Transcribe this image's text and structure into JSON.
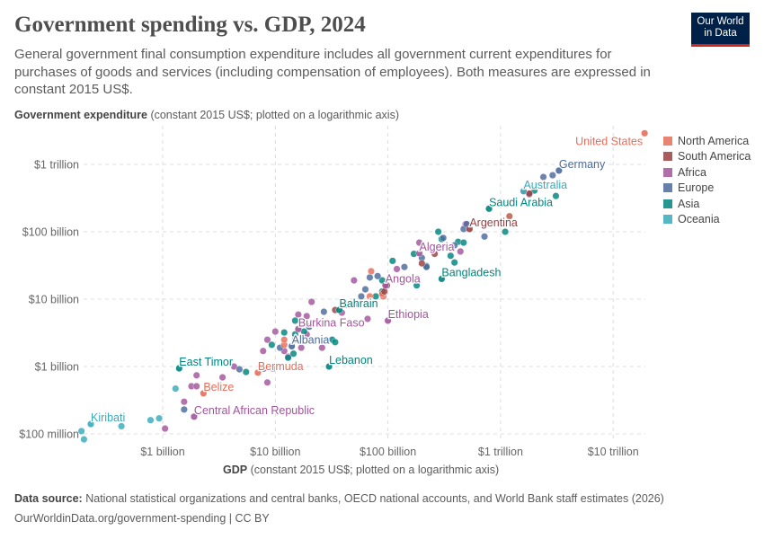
{
  "header": {
    "title": "Government spending vs. GDP, 2024",
    "subtitle": "General government final consumption expenditure includes all government current expenditures for purchases of goods and services (including compensation of employees). Both measures are expressed in constant 2015 US$.",
    "logo_line1": "Our World",
    "logo_line2": "in Data"
  },
  "footer": {
    "source_label": "Data source:",
    "source_text": "National statistical organizations and central banks, OECD national accounts, and World Bank staff estimates (2026)",
    "url_text": "OurWorldinData.org/government-spending | CC BY"
  },
  "chart_data": {
    "type": "scatter",
    "title": "Government spending vs. GDP, 2024",
    "xlabel_bold": "GDP",
    "xlabel_rest": "(constant 2015 US$; plotted on a logarithmic axis)",
    "ylabel_bold": "Government expenditure",
    "ylabel_rest": "(constant 2015 US$; plotted on a logarithmic axis)",
    "x_scale": "log",
    "y_scale": "log",
    "xlim": [
      200000000.0,
      20000000000000.0
    ],
    "ylim": [
      80000000.0,
      3200000000000.0
    ],
    "grid": true,
    "legend_position": "right",
    "x_ticks": [
      {
        "value": 1000000000.0,
        "label": "$1 billion"
      },
      {
        "value": 10000000000.0,
        "label": "$10 billion"
      },
      {
        "value": 100000000000.0,
        "label": "$100 billion"
      },
      {
        "value": 1000000000000.0,
        "label": "$1 trillion"
      },
      {
        "value": 10000000000000.0,
        "label": "$10 trillion"
      }
    ],
    "y_ticks": [
      {
        "value": 100000000.0,
        "label": "$100 million"
      },
      {
        "value": 1000000000.0,
        "label": "$1 billion"
      },
      {
        "value": 10000000000.0,
        "label": "$10 billion"
      },
      {
        "value": 100000000000.0,
        "label": "$100 billion"
      },
      {
        "value": 1000000000000.0,
        "label": "$1 trillion"
      }
    ],
    "regions": [
      {
        "name": "North America",
        "color": "#E56E5A"
      },
      {
        "name": "South America",
        "color": "#9A3F41"
      },
      {
        "name": "Africa",
        "color": "#A2559C"
      },
      {
        "name": "Europe",
        "color": "#4C6A9C"
      },
      {
        "name": "Asia",
        "color": "#00847E"
      },
      {
        "name": "Oceania",
        "color": "#38AABA"
      }
    ],
    "labeled_points": [
      {
        "label": "United States",
        "region": "North America",
        "x": 19000000000000.0,
        "y": 2900000000000.0
      },
      {
        "label": "Germany",
        "region": "Europe",
        "x": 3300000000000.0,
        "y": 810000000000.0
      },
      {
        "label": "Australia",
        "region": "Oceania",
        "x": 1600000000000.0,
        "y": 400000000000.0
      },
      {
        "label": "Saudi Arabia",
        "region": "Asia",
        "x": 790000000000.0,
        "y": 220000000000.0
      },
      {
        "label": "Argentina",
        "region": "South America",
        "x": 530000000000.0,
        "y": 110000000000.0
      },
      {
        "label": "Algeria",
        "region": "Africa",
        "x": 190000000000.0,
        "y": 48000000000.0
      },
      {
        "label": "Bangladesh",
        "region": "Asia",
        "x": 300000000000.0,
        "y": 20000000000.0
      },
      {
        "label": "Angola",
        "region": "Africa",
        "x": 95000000000.0,
        "y": 16000000000.0
      },
      {
        "label": "Bahrain",
        "region": "Asia",
        "x": 37000000000.0,
        "y": 6900000000.0
      },
      {
        "label": "Ethiopia",
        "region": "Africa",
        "x": 100000000000.0,
        "y": 4800000000.0
      },
      {
        "label": "Burkina Faso",
        "region": "Africa",
        "x": 16000000000.0,
        "y": 3600000000.0
      },
      {
        "label": "Albania",
        "region": "Europe",
        "x": 14000000000.0,
        "y": 2000000000.0
      },
      {
        "label": "Lebanon",
        "region": "Asia",
        "x": 30000000000.0,
        "y": 1000000000.0
      },
      {
        "label": "East Timor",
        "region": "Asia",
        "x": 1400000000.0,
        "y": 940000000.0
      },
      {
        "label": "Bermuda",
        "region": "North America",
        "x": 7000000000.0,
        "y": 810000000.0
      },
      {
        "label": "Belize",
        "region": "North America",
        "x": 2300000000.0,
        "y": 400000000.0
      },
      {
        "label": "Central African Republic",
        "region": "Africa",
        "x": 1900000000.0,
        "y": 180000000.0
      },
      {
        "label": "Kiribati",
        "region": "Oceania",
        "x": 230000000.0,
        "y": 140000000.0
      }
    ],
    "points": [
      [
        "Oceania",
        190000000.0,
        110000000.0
      ],
      [
        "Oceania",
        200000000.0,
        83000000.0
      ],
      [
        "Oceania",
        430000000.0,
        130000000.0
      ],
      [
        "Oceania",
        780000000.0,
        160000000.0
      ],
      [
        "Oceania",
        930000000.0,
        170000000.0
      ],
      [
        "Oceania",
        1300000000.0,
        470000000.0
      ],
      [
        "Africa",
        1050000000.0,
        120000000.0
      ],
      [
        "Africa",
        1550000000.0,
        300000000.0
      ],
      [
        "Africa",
        1800000000.0,
        510000000.0
      ],
      [
        "Africa",
        2000000000.0,
        510000000.0
      ],
      [
        "Africa",
        2000000000.0,
        740000000.0
      ],
      [
        "Africa",
        3400000000.0,
        690000000.0
      ],
      [
        "Africa",
        4300000000.0,
        1000000000.0
      ],
      [
        "Africa",
        8500000000.0,
        580000000.0
      ],
      [
        "Africa",
        7900000000.0,
        930000000.0
      ],
      [
        "Africa",
        9500000000.0,
        930000000.0
      ],
      [
        "Africa",
        7800000000.0,
        1700000000.0
      ],
      [
        "Africa",
        8500000000.0,
        2500000000.0
      ],
      [
        "Africa",
        10000000000.0,
        3300000000.0
      ],
      [
        "Africa",
        12000000000.0,
        1700000000.0
      ],
      [
        "Africa",
        13000000000.0,
        1400000000.0
      ],
      [
        "Africa",
        15000000000.0,
        2500000000.0
      ],
      [
        "Africa",
        17000000000.0,
        1900000000.0
      ],
      [
        "Africa",
        19000000000.0,
        3000000000.0
      ],
      [
        "Africa",
        21000000000.0,
        9100000000.0
      ],
      [
        "Africa",
        16000000000.0,
        5900000000.0
      ],
      [
        "Africa",
        19000000000.0,
        5600000000.0
      ],
      [
        "Africa",
        26000000000.0,
        1900000000.0
      ],
      [
        "Africa",
        39000000000.0,
        6300000000.0
      ],
      [
        "Africa",
        51000000000.0,
        8500000000.0
      ],
      [
        "Africa",
        66000000000.0,
        5100000000.0
      ],
      [
        "Africa",
        68000000000.0,
        8500000000.0
      ],
      [
        "Africa",
        50000000000.0,
        19000000000.0
      ],
      [
        "Africa",
        120000000000.0,
        28000000000.0
      ],
      [
        "Africa",
        190000000000.0,
        69000000000.0
      ],
      [
        "Africa",
        440000000000.0,
        51000000000.0
      ],
      [
        "Africa",
        490000000000.0,
        130000000000.0
      ],
      [
        "Asia",
        5500000000.0,
        830000000.0
      ],
      [
        "Asia",
        9300000000.0,
        2100000000.0
      ],
      [
        "Asia",
        12000000000.0,
        3200000000.0
      ],
      [
        "Asia",
        15000000000.0,
        3000000000.0
      ],
      [
        "Asia",
        13000000000.0,
        1350000000.0
      ],
      [
        "Asia",
        14500000000.0,
        1550000000.0
      ],
      [
        "Asia",
        15000000000.0,
        4800000000.0
      ],
      [
        "Asia",
        18000000000.0,
        3300000000.0
      ],
      [
        "Asia",
        32000000000.0,
        2500000000.0
      ],
      [
        "Asia",
        34000000000.0,
        2300000000.0
      ],
      [
        "Asia",
        78000000000.0,
        11000000000.0
      ],
      [
        "Asia",
        89000000000.0,
        13000000000.0
      ],
      [
        "Asia",
        89000000000.0,
        19000000000.0
      ],
      [
        "Asia",
        110000000000.0,
        37000000000.0
      ],
      [
        "Asia",
        180000000000.0,
        16000000000.0
      ],
      [
        "Asia",
        170000000000.0,
        47000000000.0
      ],
      [
        "Asia",
        220000000000.0,
        31000000000.0
      ],
      [
        "Asia",
        280000000000.0,
        100000000000.0
      ],
      [
        "Asia",
        300000000000.0,
        78000000000.0
      ],
      [
        "Asia",
        360000000000.0,
        44000000000.0
      ],
      [
        "Asia",
        360000000000.0,
        59000000000.0
      ],
      [
        "Asia",
        420000000000.0,
        71000000000.0
      ],
      [
        "Asia",
        470000000000.0,
        69000000000.0
      ],
      [
        "Asia",
        390000000000.0,
        35000000000.0
      ],
      [
        "Asia",
        1100000000000.0,
        100000000000.0
      ],
      [
        "Asia",
        1200000000000.0,
        170000000000.0
      ],
      [
        "Asia",
        2000000000000.0,
        410000000000.0
      ],
      [
        "Asia",
        3100000000000.0,
        340000000000.0
      ],
      [
        "Europe",
        1550000000.0,
        230000000.0
      ],
      [
        "Europe",
        4800000000.0,
        910000000.0
      ],
      [
        "Europe",
        11000000000.0,
        1900000000.0
      ],
      [
        "Europe",
        20000000000.0,
        3900000000.0
      ],
      [
        "Europe",
        27000000000.0,
        6500000000.0
      ],
      [
        "Europe",
        43000000000.0,
        8300000000.0
      ],
      [
        "Europe",
        58000000000.0,
        11000000000.0
      ],
      [
        "Europe",
        63000000000.0,
        14000000000.0
      ],
      [
        "Europe",
        69000000000.0,
        21000000000.0
      ],
      [
        "Europe",
        81000000000.0,
        22000000000.0
      ],
      [
        "Europe",
        140000000000.0,
        30000000000.0
      ],
      [
        "Europe",
        200000000000.0,
        41000000000.0
      ],
      [
        "Europe",
        220000000000.0,
        30000000000.0
      ],
      [
        "Europe",
        310000000000.0,
        81000000000.0
      ],
      [
        "Europe",
        390000000000.0,
        63000000000.0
      ],
      [
        "Europe",
        470000000000.0,
        110000000000.0
      ],
      [
        "Europe",
        500000000000.0,
        130000000000.0
      ],
      [
        "Europe",
        720000000000.0,
        85000000000.0
      ],
      [
        "Europe",
        1800000000000.0,
        360000000000.0
      ],
      [
        "Europe",
        2400000000000.0,
        650000000000.0
      ],
      [
        "Europe",
        2900000000000.0,
        690000000000.0
      ],
      [
        "North America",
        12000000000.0,
        2100000000.0
      ],
      [
        "North America",
        12000000000.0,
        2500000000.0
      ],
      [
        "North America",
        69000000000.0,
        11000000000.0
      ],
      [
        "North America",
        91000000000.0,
        11000000000.0
      ],
      [
        "North America",
        71000000000.0,
        26000000000.0
      ],
      [
        "North America",
        89000000000.0,
        12000000000.0
      ],
      [
        "North America",
        1600000000000.0,
        400000000000.0
      ],
      [
        "North America",
        1200000000000.0,
        170000000000.0
      ],
      [
        "South America",
        34000000000.0,
        6900000000.0
      ],
      [
        "South America",
        93000000000.0,
        13000000000.0
      ],
      [
        "South America",
        98000000000.0,
        16000000000.0
      ],
      [
        "South America",
        200000000000.0,
        34000000000.0
      ],
      [
        "South America",
        260000000000.0,
        47000000000.0
      ],
      [
        "South America",
        1800000000000.0,
        370000000000.0
      ]
    ]
  }
}
